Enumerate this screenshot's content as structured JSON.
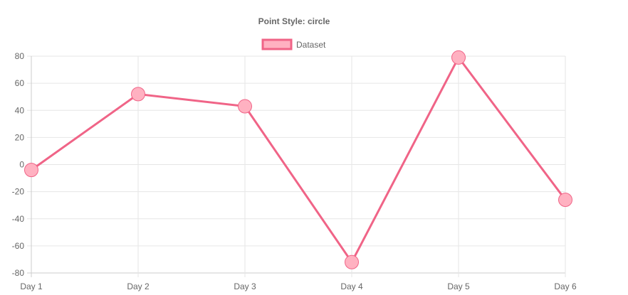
{
  "chart_data": {
    "type": "line",
    "title": "Point Style: circle",
    "categories": [
      "Day 1",
      "Day 2",
      "Day 3",
      "Day 4",
      "Day 5",
      "Day 6"
    ],
    "series": [
      {
        "name": "Dataset",
        "values": [
          -4,
          52,
          43,
          -72,
          79,
          -26
        ]
      }
    ],
    "ylim": [
      -80,
      80
    ],
    "yticks": [
      80,
      60,
      40,
      20,
      0,
      -20,
      -40,
      -60,
      -80
    ],
    "grid": true,
    "legend_position": "top",
    "point_style": "circle",
    "colors": {
      "line": "#f06487",
      "point_fill": "#ffb1c1",
      "grid": "#e6e6e6",
      "axis": "#cccccc",
      "text": "#666666"
    }
  }
}
